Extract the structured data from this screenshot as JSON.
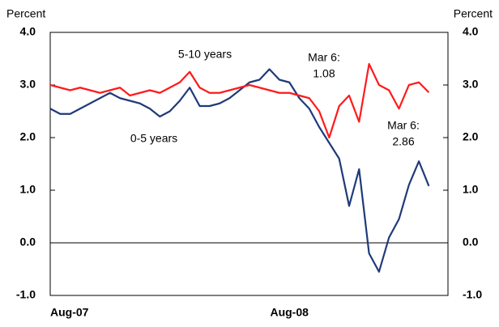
{
  "chart_data": {
    "type": "line",
    "y_label": "Percent",
    "y2_label": "Percent",
    "categories": [
      "Aug-07",
      null,
      null,
      null,
      null,
      null,
      null,
      null,
      null,
      null,
      null,
      null,
      null,
      null,
      null,
      null,
      null,
      null,
      null,
      null,
      null,
      null,
      null,
      null,
      "Aug-08",
      null,
      null,
      null,
      null,
      null,
      null,
      null,
      null,
      null,
      null,
      null,
      null,
      null,
      null
    ],
    "series": [
      {
        "name": "0-5 years",
        "color": "#1f3a7a",
        "values": [
          2.55,
          2.45,
          2.45,
          2.55,
          2.65,
          2.75,
          2.85,
          2.75,
          2.7,
          2.65,
          2.55,
          2.4,
          2.5,
          2.7,
          2.95,
          2.6,
          2.6,
          2.65,
          2.75,
          2.9,
          3.05,
          3.1,
          3.3,
          3.1,
          3.05,
          2.75,
          2.55,
          2.2,
          1.9,
          1.6,
          0.7,
          1.4,
          -0.2,
          -0.55,
          0.1,
          0.45,
          1.1,
          1.55,
          1.08
        ]
      },
      {
        "name": "5-10 years",
        "color": "#ff1a1a",
        "values": [
          3.0,
          2.95,
          2.9,
          2.95,
          2.9,
          2.85,
          2.9,
          2.95,
          2.8,
          2.85,
          2.9,
          2.85,
          2.95,
          3.05,
          3.25,
          2.95,
          2.85,
          2.85,
          2.9,
          2.95,
          3.0,
          2.95,
          2.9,
          2.85,
          2.85,
          2.8,
          2.75,
          2.5,
          2.0,
          2.6,
          2.8,
          2.3,
          3.4,
          3.0,
          2.9,
          2.55,
          3.0,
          3.05,
          2.86
        ]
      }
    ],
    "annotations": [
      {
        "lines": [
          "Mar 6:",
          "1.08"
        ],
        "color": "#1f3a7a"
      },
      {
        "lines": [
          "Mar 6:",
          "2.86"
        ],
        "color": "#ff1a1a"
      }
    ],
    "ylim": [
      -1.0,
      4.0
    ],
    "yticks": [
      {
        "value": -1.0,
        "label": "-1.0"
      },
      {
        "value": 0.0,
        "label": "0.0"
      },
      {
        "value": 1.0,
        "label": "1.0"
      },
      {
        "value": 2.0,
        "label": "2.0"
      },
      {
        "value": 3.0,
        "label": "3.0"
      },
      {
        "value": 4.0,
        "label": "4.0"
      }
    ],
    "y2lim": [
      -1.0,
      4.0
    ],
    "y2ticks": [
      {
        "value": -1.0,
        "label": "-1.0"
      },
      {
        "value": 0.0,
        "label": "0.0"
      },
      {
        "value": 1.0,
        "label": "1.0"
      },
      {
        "value": 2.0,
        "label": "2.0"
      },
      {
        "value": 3.0,
        "label": "3.0"
      },
      {
        "value": 4.0,
        "label": "4.0"
      }
    ]
  }
}
